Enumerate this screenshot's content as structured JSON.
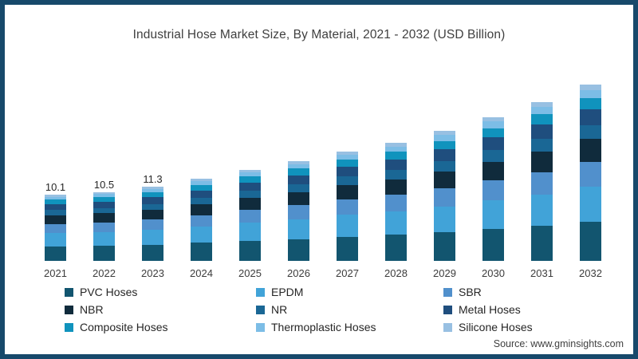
{
  "page": {
    "background": "#ffffff",
    "border_color": "#17496b",
    "source_note": "Source: www.gminsights.com"
  },
  "chart_data": {
    "type": "bar",
    "stacked": true,
    "title": "Industrial Hose Market Size, By Material, 2021 - 2032 (USD Billion)",
    "unit": "USD Billion",
    "grid": false,
    "axis_lines": false,
    "legend_position": "bottom",
    "categories": [
      "2021",
      "2022",
      "2023",
      "2024",
      "2025",
      "2026",
      "2027",
      "2028",
      "2029",
      "2030",
      "2031",
      "2032"
    ],
    "totals": [
      10.1,
      10.5,
      11.3,
      12.5,
      13.9,
      15.2,
      16.7,
      18.0,
      19.8,
      21.9,
      24.2,
      26.9
    ],
    "bar_total_labels": [
      "10.1",
      "10.5",
      "11.3",
      "",
      "",
      "",
      "",
      "",
      "",
      "",
      "",
      ""
    ],
    "series": [
      {
        "name": "PVC Hoses",
        "color": "#12556f",
        "values": [
          2.22,
          2.31,
          2.49,
          2.75,
          3.06,
          3.34,
          3.67,
          3.96,
          4.36,
          4.82,
          5.32,
          5.92
        ]
      },
      {
        "name": "EPDM",
        "color": "#41a3d8",
        "values": [
          2.02,
          2.1,
          2.26,
          2.5,
          2.78,
          3.04,
          3.34,
          3.6,
          3.96,
          4.38,
          4.84,
          5.38
        ]
      },
      {
        "name": "SBR",
        "color": "#5190cc",
        "values": [
          1.41,
          1.47,
          1.58,
          1.75,
          1.95,
          2.13,
          2.34,
          2.52,
          2.77,
          3.07,
          3.39,
          3.77
        ]
      },
      {
        "name": "NBR",
        "color": "#102b3c",
        "values": [
          1.31,
          1.37,
          1.47,
          1.63,
          1.81,
          1.98,
          2.17,
          2.34,
          2.57,
          2.85,
          3.15,
          3.5
        ]
      },
      {
        "name": "NR",
        "color": "#1a6795",
        "values": [
          0.81,
          0.84,
          0.9,
          1.0,
          1.11,
          1.22,
          1.34,
          1.44,
          1.58,
          1.75,
          1.94,
          2.15
        ]
      },
      {
        "name": "Metal Hoses",
        "color": "#1f4e7e",
        "values": [
          0.91,
          0.95,
          1.02,
          1.13,
          1.25,
          1.37,
          1.5,
          1.62,
          1.78,
          1.97,
          2.18,
          2.42
        ]
      },
      {
        "name": "Composite Hoses",
        "color": "#1093bd",
        "values": [
          0.66,
          0.68,
          0.73,
          0.81,
          0.9,
          0.99,
          1.09,
          1.17,
          1.29,
          1.42,
          1.57,
          1.75
        ]
      },
      {
        "name": "Thermoplastic Hoses",
        "color": "#7cbde6",
        "values": [
          0.45,
          0.47,
          0.51,
          0.56,
          0.63,
          0.68,
          0.75,
          0.81,
          0.89,
          0.99,
          1.09,
          1.21
        ]
      },
      {
        "name": "Silicone Hoses",
        "color": "#98c0e2",
        "values": [
          0.3,
          0.32,
          0.34,
          0.38,
          0.42,
          0.46,
          0.5,
          0.54,
          0.59,
          0.66,
          0.73,
          0.81
        ]
      }
    ]
  }
}
